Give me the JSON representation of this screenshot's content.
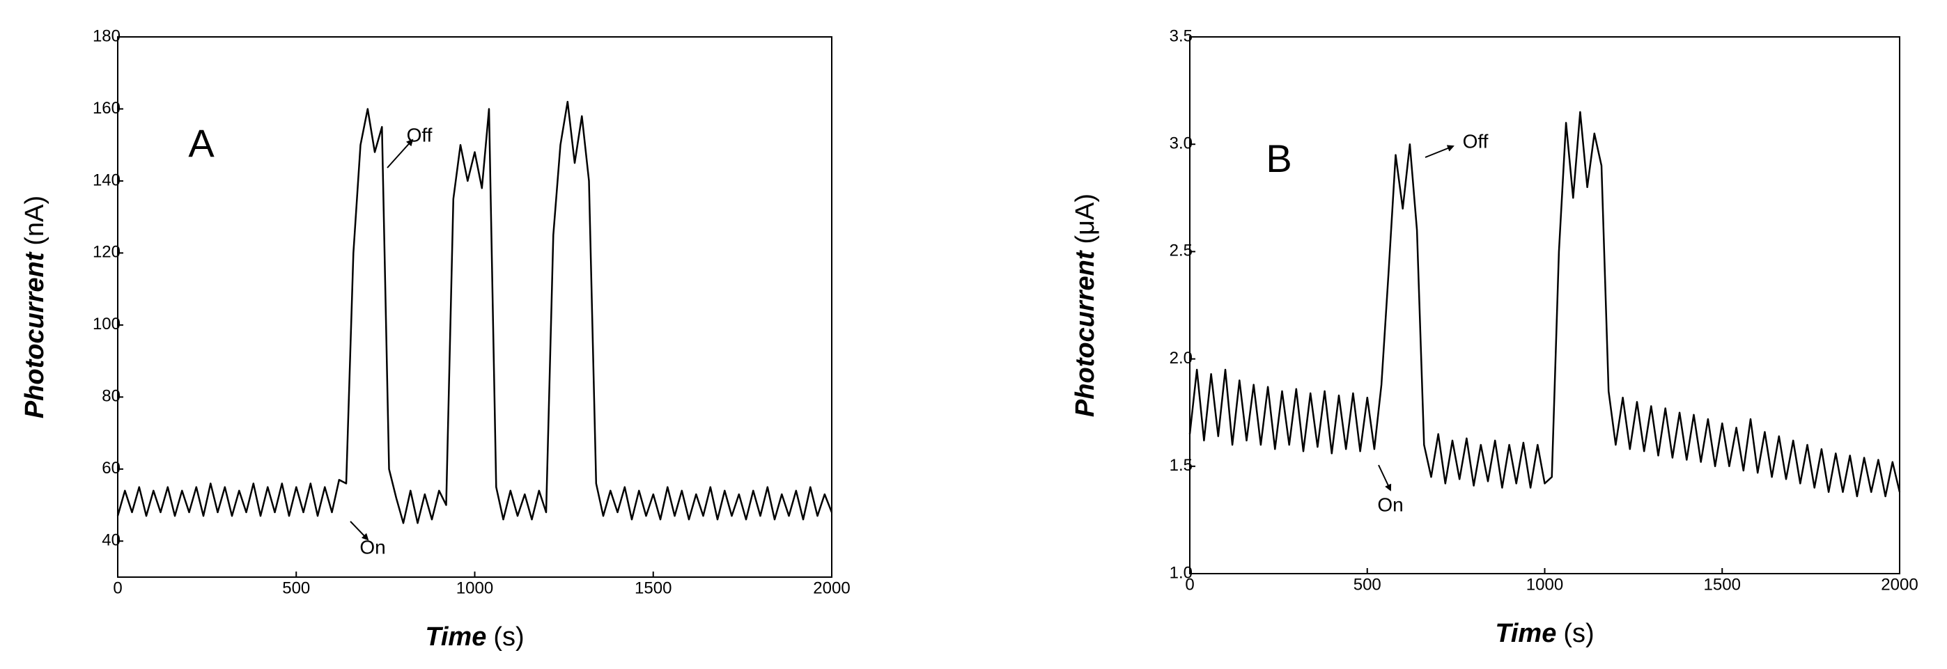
{
  "chart_data": [
    {
      "type": "line",
      "xlabel": "Time",
      "xunit": "(s)",
      "ylabel": "Photocurrent",
      "yunit": "(nA)",
      "annotations": [
        "A",
        "Off",
        "On"
      ],
      "xlim": [
        0,
        2000
      ],
      "xticks": [
        0,
        500,
        1000,
        1500,
        2000
      ],
      "ylim": [
        30,
        180
      ],
      "yticks": [
        40,
        60,
        80,
        100,
        120,
        140,
        160,
        180
      ],
      "grid": false,
      "series": [
        {
          "color": "#000000",
          "x": [
            0,
            20,
            40,
            60,
            80,
            100,
            120,
            140,
            160,
            180,
            200,
            220,
            240,
            260,
            280,
            300,
            320,
            340,
            360,
            380,
            400,
            420,
            440,
            460,
            480,
            500,
            520,
            540,
            560,
            580,
            600,
            620,
            640,
            660,
            680,
            700,
            720,
            740,
            760,
            780,
            800,
            820,
            840,
            860,
            880,
            900,
            920,
            940,
            960,
            980,
            1000,
            1020,
            1040,
            1060,
            1080,
            1100,
            1120,
            1140,
            1160,
            1180,
            1200,
            1220,
            1240,
            1260,
            1280,
            1300,
            1320,
            1340,
            1360,
            1380,
            1400,
            1420,
            1440,
            1460,
            1480,
            1500,
            1520,
            1540,
            1560,
            1580,
            1600,
            1620,
            1640,
            1660,
            1680,
            1700,
            1720,
            1740,
            1760,
            1780,
            1800,
            1820,
            1840,
            1860,
            1880,
            1900,
            1920,
            1940,
            1960,
            1980,
            2000
          ],
          "values": [
            47,
            54,
            48,
            55,
            47,
            54,
            48,
            55,
            47,
            54,
            48,
            55,
            47,
            56,
            48,
            55,
            47,
            54,
            48,
            56,
            47,
            55,
            48,
            56,
            47,
            55,
            48,
            56,
            47,
            55,
            48,
            57,
            56,
            120,
            150,
            160,
            148,
            155,
            60,
            52,
            45,
            54,
            45,
            53,
            46,
            54,
            50,
            135,
            150,
            140,
            148,
            138,
            160,
            55,
            46,
            54,
            47,
            53,
            46,
            54,
            48,
            125,
            150,
            162,
            145,
            158,
            140,
            56,
            47,
            54,
            48,
            55,
            46,
            54,
            47,
            53,
            46,
            55,
            47,
            54,
            46,
            53,
            47,
            55,
            46,
            54,
            47,
            53,
            46,
            54,
            47,
            55,
            46,
            53,
            47,
            54,
            46,
            55,
            47,
            53,
            48
          ]
        }
      ]
    },
    {
      "type": "line",
      "xlabel": "Time",
      "xunit": "(s)",
      "ylabel": "Photocurrent",
      "yunit": "(μA)",
      "annotations": [
        "B",
        "Off",
        "On"
      ],
      "xlim": [
        0,
        2000
      ],
      "xticks": [
        0,
        500,
        1000,
        1500,
        2000
      ],
      "ylim": [
        1.0,
        3.5
      ],
      "yticks": [
        {
          "value": 1.0,
          "label": "1.0"
        },
        1.5,
        {
          "value": 2.0,
          "label": "2.0"
        },
        2.5,
        {
          "value": 3.0,
          "label": "3.0"
        },
        3.5
      ],
      "grid": false,
      "series": [
        {
          "color": "#000000",
          "x": [
            0,
            20,
            40,
            60,
            80,
            100,
            120,
            140,
            160,
            180,
            200,
            220,
            240,
            260,
            280,
            300,
            320,
            340,
            360,
            380,
            400,
            420,
            440,
            460,
            480,
            500,
            520,
            540,
            560,
            580,
            600,
            620,
            640,
            660,
            680,
            700,
            720,
            740,
            760,
            780,
            800,
            820,
            840,
            860,
            880,
            900,
            920,
            940,
            960,
            980,
            1000,
            1020,
            1040,
            1060,
            1080,
            1100,
            1120,
            1140,
            1160,
            1180,
            1200,
            1220,
            1240,
            1260,
            1280,
            1300,
            1320,
            1340,
            1360,
            1380,
            1400,
            1420,
            1440,
            1460,
            1480,
            1500,
            1520,
            1540,
            1560,
            1580,
            1600,
            1620,
            1640,
            1660,
            1680,
            1700,
            1720,
            1740,
            1760,
            1780,
            1800,
            1820,
            1840,
            1860,
            1880,
            1900,
            1920,
            1940,
            1960,
            1980,
            2000
          ],
          "values": [
            1.65,
            1.95,
            1.62,
            1.93,
            1.64,
            1.95,
            1.6,
            1.9,
            1.62,
            1.88,
            1.6,
            1.87,
            1.58,
            1.85,
            1.6,
            1.86,
            1.57,
            1.84,
            1.59,
            1.85,
            1.56,
            1.83,
            1.58,
            1.84,
            1.57,
            1.82,
            1.58,
            1.88,
            2.4,
            2.95,
            2.7,
            3.0,
            2.6,
            1.6,
            1.45,
            1.65,
            1.42,
            1.62,
            1.44,
            1.63,
            1.41,
            1.6,
            1.43,
            1.62,
            1.4,
            1.6,
            1.42,
            1.61,
            1.4,
            1.6,
            1.42,
            1.45,
            2.5,
            3.1,
            2.75,
            3.15,
            2.8,
            3.05,
            2.9,
            1.85,
            1.6,
            1.82,
            1.58,
            1.8,
            1.57,
            1.78,
            1.55,
            1.77,
            1.54,
            1.75,
            1.53,
            1.74,
            1.52,
            1.72,
            1.5,
            1.7,
            1.5,
            1.68,
            1.48,
            1.72,
            1.47,
            1.66,
            1.45,
            1.64,
            1.44,
            1.62,
            1.42,
            1.6,
            1.4,
            1.58,
            1.38,
            1.56,
            1.38,
            1.55,
            1.36,
            1.54,
            1.38,
            1.53,
            1.36,
            1.52,
            1.38
          ]
        }
      ]
    }
  ]
}
